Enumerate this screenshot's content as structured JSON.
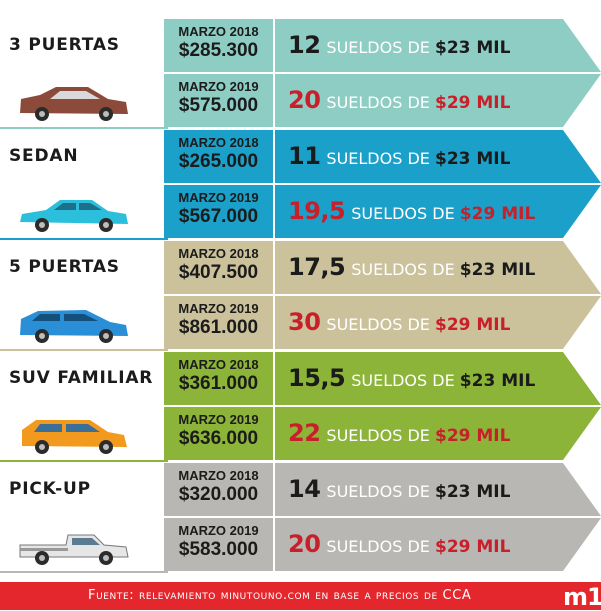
{
  "categories": [
    {
      "label": "3 PUERTAS",
      "color": "#8ecdc4",
      "car_color": "#8b4a3a",
      "rows": [
        {
          "date": "MARZO 2018",
          "price": "$285.300",
          "count": "12",
          "word": "SUELDOS DE",
          "amount": "$23 MIL"
        },
        {
          "date": "MARZO 2019",
          "price": "$575.000",
          "count": "20",
          "word": "SUELDOS DE",
          "amount": "$29 MIL"
        }
      ]
    },
    {
      "label": "SEDAN",
      "color": "#1aa0c9",
      "car_color": "#2bbfdc",
      "rows": [
        {
          "date": "MARZO 2018",
          "price": "$265.000",
          "count": "11",
          "word": "SUELDOS DE",
          "amount": "$23 MIL"
        },
        {
          "date": "MARZO 2019",
          "price": "$567.000",
          "count": "19,5",
          "word": "SUELDOS DE",
          "amount": "$29 MIL"
        }
      ]
    },
    {
      "label": "5 PUERTAS",
      "color": "#cbc29c",
      "car_color": "#2a8fd6",
      "rows": [
        {
          "date": "MARZO 2018",
          "price": "$407.500",
          "count": "17,5",
          "word": "SUELDOS DE",
          "amount": "$23 MIL"
        },
        {
          "date": "MARZO 2019",
          "price": "$861.000",
          "count": "30",
          "word": "SUELDOS DE",
          "amount": "$29 MIL"
        }
      ]
    },
    {
      "label": "SUV FAMILIAR",
      "color": "#8bb438",
      "car_color": "#f29a1d",
      "rows": [
        {
          "date": "MARZO 2018",
          "price": "$361.000",
          "count": "15,5",
          "word": "SUELDOS DE",
          "amount": "$23 MIL"
        },
        {
          "date": "MARZO 2019",
          "price": "$636.000",
          "count": "22",
          "word": "SUELDOS DE",
          "amount": "$29 MIL"
        }
      ]
    },
    {
      "label": "PICK-UP",
      "color": "#b9b7b3",
      "car_color": "#e6e6e6",
      "rows": [
        {
          "date": "MARZO 2018",
          "price": "$320.000",
          "count": "14",
          "word": "SUELDOS DE",
          "amount": "$23 MIL"
        },
        {
          "date": "MARZO 2019",
          "price": "$583.000",
          "count": "20",
          "word": "SUELDOS DE",
          "amount": "$29 MIL"
        }
      ]
    }
  ],
  "footer": {
    "source": "Fuente: relevamiento minutouno.com en base a precios de CCA",
    "logo": "m1",
    "color": "#e4262d"
  },
  "colors": {
    "highlight": "#c8202a",
    "text_dark": "#1b1b1b"
  }
}
